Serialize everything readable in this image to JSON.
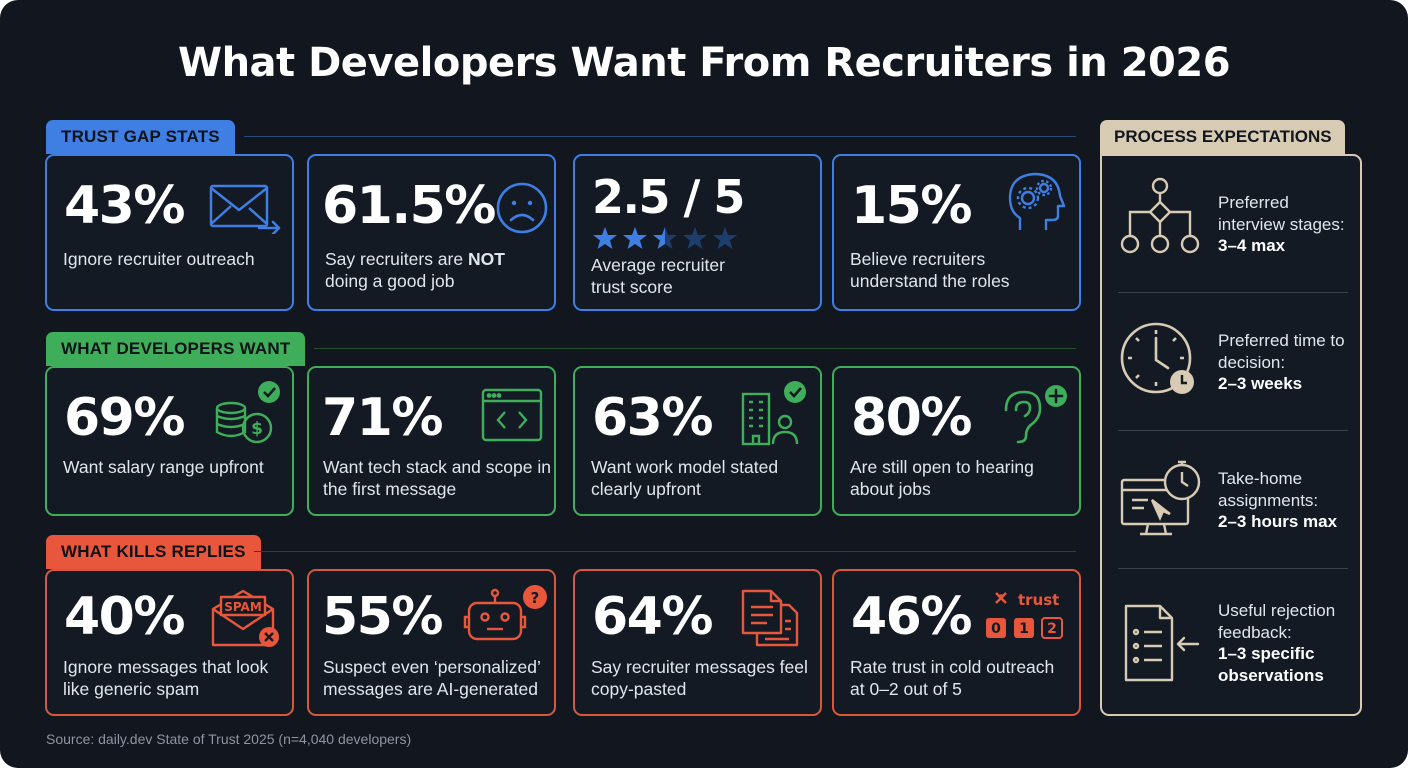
{
  "title": "What Developers Want From Recruiters in 2026",
  "colors": {
    "background": "#12161e",
    "trust": "#3f7fe3",
    "want": "#3fae5a",
    "kills": "#d9583c",
    "process": "#d8cbb4"
  },
  "sections": {
    "trust": {
      "label": "TRUST GAP STATS",
      "cards": [
        {
          "value": "43%",
          "text": "Ignore recruiter outreach",
          "icon": "envelope-arrow-icon"
        },
        {
          "value": "61.5%",
          "text_prefix": "Say recruiters are ",
          "text_bold": "NOT",
          "text_suffix": "doing a good job",
          "icon": "sad-face-icon"
        },
        {
          "value": "2.5 / 5",
          "text": "Average recruiter trust score",
          "icon": "star-rating-icon",
          "rating": 2.5,
          "rating_max": 5
        },
        {
          "value": "15%",
          "text": "Believe recruiters understand the roles",
          "icon": "head-gears-icon"
        }
      ]
    },
    "want": {
      "label": "WHAT DEVELOPERS WANT",
      "cards": [
        {
          "value": "69%",
          "text": "Want salary range upfront",
          "icon": "coins-check-icon"
        },
        {
          "value": "71%",
          "text": "Want tech stack and scope in the first message",
          "icon": "code-window-icon"
        },
        {
          "value": "63%",
          "text": "Want work model stated clearly upfront",
          "icon": "office-person-check-icon"
        },
        {
          "value": "80%",
          "text": "Are still open to hearing about jobs",
          "icon": "ear-plus-icon"
        }
      ]
    },
    "kills": {
      "label": "WHAT KILLS REPLIES",
      "cards": [
        {
          "value": "40%",
          "text": "Ignore messages that look like generic spam",
          "icon": "spam-envelope-icon",
          "icon_text": "SPAM"
        },
        {
          "value": "55%",
          "text": "Suspect even ‘personalized’ messages are AI-generated",
          "icon": "robot-question-icon"
        },
        {
          "value": "64%",
          "text": "Say recruiter messages feel copy-pasted",
          "icon": "copy-documents-icon"
        },
        {
          "value": "46%",
          "text": "Rate trust in cold outreach at 0–2 out of 5",
          "icon": "trust-scale-icon",
          "icon_text": "trust",
          "scale": [
            "0",
            "1",
            "2"
          ]
        }
      ]
    }
  },
  "process": {
    "label": "PROCESS EXPECTATIONS",
    "items": [
      {
        "text": "Preferred interview stages:",
        "bold": "3–4 max",
        "icon": "flowchart-icon"
      },
      {
        "text": "Preferred time to decision:",
        "bold": "2–3 weeks",
        "icon": "clock-icon"
      },
      {
        "text": "Take-home assignments:",
        "bold": "2–3 hours max",
        "icon": "monitor-stopwatch-icon"
      },
      {
        "text": "Useful rejection feedback:",
        "bold": "1–3 specific observations",
        "icon": "feedback-document-icon"
      }
    ]
  },
  "source": "Source: daily.dev State of Trust 2025 (n=4,040 developers)"
}
